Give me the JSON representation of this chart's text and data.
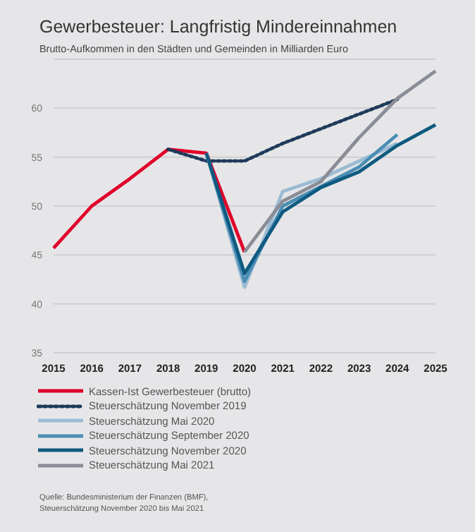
{
  "chart_data": {
    "type": "line",
    "title": "Gewerbesteuer: Langfristig Mindereinnahmen",
    "subtitle": "Brutto-Aufkommen in den Städten und Gemeinden in Milliarden Euro",
    "categories": [
      "2015",
      "2016",
      "2017",
      "2018",
      "2019",
      "2020",
      "2021",
      "2022",
      "2023",
      "2024",
      "2025"
    ],
    "series": [
      {
        "name": "Kassen-Ist Gewerbesteuer (brutto)",
        "color": "#e0002a",
        "values": [
          45.7,
          50,
          52.8,
          55.8,
          55.4,
          45.3,
          null,
          null,
          null,
          null,
          null
        ]
      },
      {
        "name": "Steuerschätzung November 2019",
        "color": "#1e3a5a",
        "line_style": "dotted",
        "values": [
          null,
          null,
          null,
          55.8,
          54.6,
          54.6,
          56.4,
          57.9,
          59.4,
          60.9,
          null
        ]
      },
      {
        "name": "Steuerschätzung Mai 2020",
        "color": "#9bbcd3",
        "values": [
          null,
          null,
          null,
          null,
          55.4,
          41.7,
          51.5,
          52.8,
          54.6,
          56.4,
          null
        ]
      },
      {
        "name": "Steuerschätzung September 2020",
        "color": "#4a8db4",
        "values": [
          null,
          null,
          null,
          null,
          55.4,
          42.3,
          50,
          52,
          54,
          57.3,
          null
        ]
      },
      {
        "name": "Steuerschätzung November 2020",
        "color": "#0f5a80",
        "values": [
          null,
          null,
          null,
          null,
          55.4,
          43.1,
          49.4,
          51.9,
          53.5,
          56.2,
          58.3
        ]
      },
      {
        "name": "Steuerschätzung Mai 2021",
        "color": "#8a8c96",
        "values": [
          null,
          null,
          null,
          null,
          null,
          45.3,
          50.5,
          52.5,
          57,
          61,
          63.8
        ]
      }
    ],
    "ylim": [
      35,
      65
    ],
    "yticks": [
      35,
      40,
      45,
      50,
      55,
      60
    ],
    "grid": "y",
    "legend": "bottom",
    "marker": "none",
    "line_style": "solid",
    "annotations": [
      "Quelle: Bundesministerium der Finanzen (BMF), Steuerschätzung November 2020 bis Mai 2021"
    ]
  }
}
